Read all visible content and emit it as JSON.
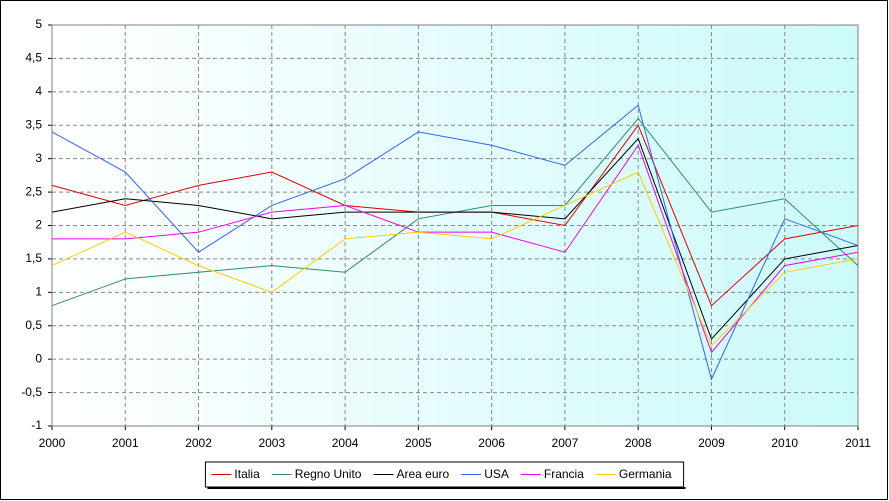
{
  "chart_data": {
    "type": "line",
    "x": [
      2000,
      2001,
      2002,
      2003,
      2004,
      2005,
      2006,
      2007,
      2008,
      2009,
      2010,
      2011
    ],
    "xlim": [
      2000,
      2011
    ],
    "xticks": [
      2000,
      2001,
      2002,
      2003,
      2004,
      2005,
      2006,
      2007,
      2008,
      2009,
      2010,
      2011
    ],
    "ylim": [
      -1,
      5
    ],
    "yticks": [
      -1,
      {
        "value": -0.5,
        "label": "-0,5"
      },
      0,
      {
        "value": 0.5,
        "label": "0,5"
      },
      1,
      {
        "value": 1.5,
        "label": "1,5"
      },
      2,
      {
        "value": 2.5,
        "label": "2,5"
      },
      3,
      {
        "value": 3.5,
        "label": "3,5"
      },
      4,
      {
        "value": 4.5,
        "label": "4,5"
      },
      5
    ],
    "grid": true,
    "legend": "bottom",
    "series": [
      {
        "name": "Italia",
        "color": "#e00000",
        "values": [
          2.6,
          2.3,
          2.6,
          2.8,
          2.3,
          2.2,
          2.2,
          2.0,
          3.5,
          0.8,
          1.8,
          2.0
        ]
      },
      {
        "name": "Regno Unito",
        "color": "#2e8b6e",
        "values": [
          0.8,
          1.2,
          1.3,
          1.4,
          1.3,
          2.1,
          2.3,
          2.3,
          3.6,
          2.2,
          2.4,
          1.4
        ]
      },
      {
        "name": "Area euro",
        "color": "#000000",
        "values": [
          2.2,
          2.4,
          2.3,
          2.1,
          2.2,
          2.2,
          2.2,
          2.1,
          3.3,
          0.3,
          1.5,
          1.7
        ]
      },
      {
        "name": "USA",
        "color": "#3366ee",
        "values": [
          3.4,
          2.8,
          1.6,
          2.3,
          2.7,
          3.4,
          3.2,
          2.9,
          3.8,
          -0.3,
          2.1,
          1.7
        ]
      },
      {
        "name": "Francia",
        "color": "#ee00ee",
        "values": [
          1.8,
          1.8,
          1.9,
          2.2,
          2.3,
          1.9,
          1.9,
          1.6,
          3.2,
          0.1,
          1.4,
          1.6
        ]
      },
      {
        "name": "Germania",
        "color": "#ffcc00",
        "values": [
          1.4,
          1.9,
          1.4,
          1.0,
          1.8,
          1.9,
          1.8,
          2.3,
          2.8,
          0.2,
          1.3,
          1.5
        ]
      }
    ]
  }
}
